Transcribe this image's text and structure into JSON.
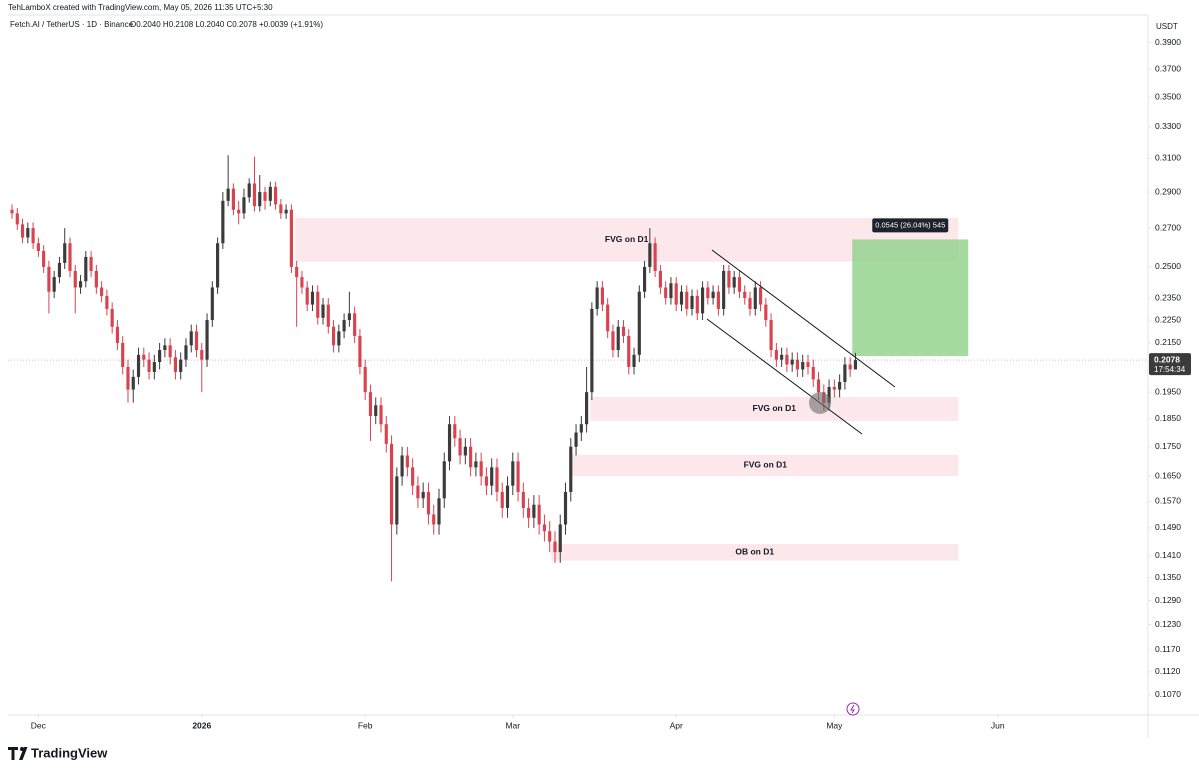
{
  "header": {
    "credit": "TehLamboX created with TradingView.com, May 05, 2026 11:35 UTC+5:30",
    "symbol": "Fetch.AI / TetherUS · 1D · Binance",
    "ohlc": "O0.2040 H0.2108 L0.2040 C0.2078 +0.0039 (+1.91%)"
  },
  "footer": {
    "logo": "TradingView"
  },
  "chart_data": {
    "type": "candlestick",
    "currency": "USDT",
    "log_scale": true,
    "grid": false,
    "up_color": "#3b3b3b",
    "down_color": "#d9434f",
    "xlim": [
      -0.76,
      215.5
    ],
    "xticks": [
      {
        "value": 5,
        "label": "Dec"
      },
      {
        "value": 36,
        "label": "2026"
      },
      {
        "value": 67,
        "label": "Feb"
      },
      {
        "value": 95,
        "label": "Mar"
      },
      {
        "value": 126,
        "label": "Apr"
      },
      {
        "value": 156,
        "label": "May"
      },
      {
        "value": 187,
        "label": "Jun"
      }
    ],
    "ylim": [
      0.1028,
      0.412
    ],
    "yticks": [
      {
        "value": 0.39,
        "label": "0.3900"
      },
      {
        "value": 0.37,
        "label": "0.3700"
      },
      {
        "value": 0.35,
        "label": "0.3500"
      },
      {
        "value": 0.33,
        "label": "0.3300"
      },
      {
        "value": 0.31,
        "label": "0.3100"
      },
      {
        "value": 0.29,
        "label": "0.2900"
      },
      {
        "value": 0.27,
        "label": "0.2700"
      },
      {
        "value": 0.25,
        "label": "0.2500"
      },
      {
        "value": 0.235,
        "label": "0.2350"
      },
      {
        "value": 0.225,
        "label": "0.2250"
      },
      {
        "value": 0.215,
        "label": "0.2150"
      },
      {
        "value": 0.195,
        "label": "0.1950"
      },
      {
        "value": 0.185,
        "label": "0.1850"
      },
      {
        "value": 0.175,
        "label": "0.1750"
      },
      {
        "value": 0.165,
        "label": "0.1650"
      },
      {
        "value": 0.157,
        "label": "0.1570"
      },
      {
        "value": 0.149,
        "label": "0.1490"
      },
      {
        "value": 0.141,
        "label": "0.1410"
      },
      {
        "value": 0.135,
        "label": "0.1350"
      },
      {
        "value": 0.129,
        "label": "0.1290"
      },
      {
        "value": 0.123,
        "label": "0.1230"
      },
      {
        "value": 0.117,
        "label": "0.1170"
      },
      {
        "value": 0.112,
        "label": "0.1120"
      },
      {
        "value": 0.107,
        "label": "0.1070"
      }
    ],
    "open": [
      0.28,
      0.278,
      0.272,
      0.265,
      0.27,
      0.262,
      0.258,
      0.25,
      0.238,
      0.245,
      0.252,
      0.262,
      0.248,
      0.24,
      0.243,
      0.255,
      0.248,
      0.24,
      0.236,
      0.23,
      0.222,
      0.215,
      0.205,
      0.196,
      0.201,
      0.21,
      0.208,
      0.203,
      0.207,
      0.212,
      0.214,
      0.209,
      0.203,
      0.208,
      0.214,
      0.22,
      0.212,
      0.208,
      0.225,
      0.24,
      0.262,
      0.285,
      0.292,
      0.28,
      0.278,
      0.287,
      0.295,
      0.282,
      0.29,
      0.285,
      0.293,
      0.283,
      0.278,
      0.28,
      0.25,
      0.245,
      0.24,
      0.232,
      0.238,
      0.226,
      0.232,
      0.222,
      0.214,
      0.22,
      0.225,
      0.228,
      0.218,
      0.205,
      0.195,
      0.186,
      0.19,
      0.183,
      0.176,
      0.15,
      0.165,
      0.172,
      0.168,
      0.162,
      0.158,
      0.16,
      0.153,
      0.15,
      0.158,
      0.17,
      0.183,
      0.178,
      0.172,
      0.175,
      0.168,
      0.17,
      0.165,
      0.162,
      0.168,
      0.16,
      0.155,
      0.162,
      0.17,
      0.16,
      0.155,
      0.152,
      0.156,
      0.15,
      0.148,
      0.145,
      0.142,
      0.15,
      0.16,
      0.175,
      0.18,
      0.183,
      0.195,
      0.23,
      0.24,
      0.232,
      0.22,
      0.212,
      0.222,
      0.218,
      0.205,
      0.21,
      0.238,
      0.25,
      0.262,
      0.248,
      0.24,
      0.235,
      0.242,
      0.232,
      0.238,
      0.23,
      0.236,
      0.228,
      0.24,
      0.235,
      0.238,
      0.23,
      0.248,
      0.24,
      0.245,
      0.238,
      0.235,
      0.23,
      0.24,
      0.232,
      0.225,
      0.212,
      0.208,
      0.21,
      0.206,
      0.208,
      0.204,
      0.207,
      0.205,
      0.2,
      0.195,
      0.191,
      0.197,
      0.196,
      0.199,
      0.206,
      0.204
    ],
    "high": [
      0.283,
      0.281,
      0.275,
      0.273,
      0.273,
      0.265,
      0.261,
      0.253,
      0.248,
      0.255,
      0.27,
      0.265,
      0.251,
      0.246,
      0.258,
      0.258,
      0.251,
      0.243,
      0.239,
      0.233,
      0.225,
      0.218,
      0.208,
      0.204,
      0.213,
      0.213,
      0.211,
      0.21,
      0.215,
      0.217,
      0.217,
      0.212,
      0.211,
      0.217,
      0.223,
      0.223,
      0.215,
      0.228,
      0.243,
      0.265,
      0.29,
      0.312,
      0.295,
      0.285,
      0.292,
      0.298,
      0.311,
      0.3,
      0.293,
      0.296,
      0.296,
      0.286,
      0.283,
      0.283,
      0.253,
      0.248,
      0.243,
      0.241,
      0.241,
      0.235,
      0.235,
      0.225,
      0.223,
      0.228,
      0.238,
      0.231,
      0.221,
      0.208,
      0.198,
      0.193,
      0.193,
      0.186,
      0.179,
      0.168,
      0.175,
      0.175,
      0.171,
      0.165,
      0.163,
      0.163,
      0.156,
      0.161,
      0.173,
      0.186,
      0.186,
      0.181,
      0.178,
      0.178,
      0.173,
      0.173,
      0.168,
      0.171,
      0.171,
      0.163,
      0.165,
      0.173,
      0.173,
      0.163,
      0.158,
      0.159,
      0.159,
      0.153,
      0.151,
      0.148,
      0.153,
      0.163,
      0.178,
      0.183,
      0.186,
      0.205,
      0.233,
      0.243,
      0.243,
      0.235,
      0.223,
      0.225,
      0.225,
      0.221,
      0.213,
      0.241,
      0.253,
      0.27,
      0.265,
      0.251,
      0.243,
      0.245,
      0.245,
      0.241,
      0.241,
      0.239,
      0.239,
      0.243,
      0.243,
      0.241,
      0.241,
      0.251,
      0.251,
      0.248,
      0.248,
      0.241,
      0.238,
      0.243,
      0.243,
      0.235,
      0.228,
      0.215,
      0.213,
      0.213,
      0.211,
      0.211,
      0.21,
      0.21,
      0.208,
      0.203,
      0.198,
      0.2,
      0.2,
      0.202,
      0.209,
      0.209,
      0.2108
    ],
    "low": [
      0.275,
      0.269,
      0.262,
      0.262,
      0.259,
      0.255,
      0.247,
      0.228,
      0.235,
      0.242,
      0.249,
      0.245,
      0.228,
      0.237,
      0.24,
      0.245,
      0.237,
      0.233,
      0.227,
      0.219,
      0.212,
      0.202,
      0.191,
      0.191,
      0.198,
      0.205,
      0.2,
      0.2,
      0.204,
      0.209,
      0.206,
      0.2,
      0.2,
      0.205,
      0.211,
      0.209,
      0.195,
      0.205,
      0.222,
      0.237,
      0.259,
      0.282,
      0.277,
      0.272,
      0.275,
      0.284,
      0.279,
      0.279,
      0.28,
      0.282,
      0.28,
      0.275,
      0.275,
      0.247,
      0.222,
      0.237,
      0.229,
      0.229,
      0.223,
      0.223,
      0.219,
      0.211,
      0.211,
      0.217,
      0.222,
      0.215,
      0.202,
      0.192,
      0.177,
      0.183,
      0.18,
      0.173,
      0.134,
      0.147,
      0.162,
      0.165,
      0.159,
      0.155,
      0.155,
      0.15,
      0.147,
      0.147,
      0.155,
      0.167,
      0.175,
      0.169,
      0.169,
      0.165,
      0.165,
      0.162,
      0.159,
      0.159,
      0.157,
      0.152,
      0.152,
      0.159,
      0.157,
      0.152,
      0.149,
      0.149,
      0.147,
      0.145,
      0.142,
      0.139,
      0.139,
      0.147,
      0.157,
      0.172,
      0.177,
      0.18,
      0.192,
      0.227,
      0.229,
      0.217,
      0.209,
      0.209,
      0.215,
      0.202,
      0.202,
      0.207,
      0.235,
      0.247,
      0.245,
      0.237,
      0.232,
      0.232,
      0.229,
      0.229,
      0.227,
      0.227,
      0.225,
      0.225,
      0.232,
      0.232,
      0.227,
      0.227,
      0.237,
      0.237,
      0.235,
      0.232,
      0.227,
      0.227,
      0.229,
      0.222,
      0.209,
      0.205,
      0.205,
      0.203,
      0.203,
      0.201,
      0.201,
      0.202,
      0.197,
      0.192,
      0.188,
      0.188,
      0.193,
      0.193,
      0.196,
      0.201,
      0.204
    ],
    "close": [
      0.278,
      0.272,
      0.265,
      0.27,
      0.262,
      0.258,
      0.25,
      0.238,
      0.245,
      0.252,
      0.262,
      0.248,
      0.24,
      0.243,
      0.255,
      0.248,
      0.24,
      0.236,
      0.23,
      0.222,
      0.215,
      0.205,
      0.196,
      0.201,
      0.21,
      0.208,
      0.203,
      0.207,
      0.212,
      0.214,
      0.209,
      0.203,
      0.208,
      0.214,
      0.22,
      0.212,
      0.208,
      0.225,
      0.24,
      0.262,
      0.285,
      0.292,
      0.28,
      0.278,
      0.287,
      0.295,
      0.282,
      0.29,
      0.285,
      0.293,
      0.283,
      0.278,
      0.28,
      0.25,
      0.245,
      0.24,
      0.232,
      0.238,
      0.226,
      0.232,
      0.222,
      0.214,
      0.22,
      0.225,
      0.228,
      0.218,
      0.205,
      0.195,
      0.186,
      0.19,
      0.183,
      0.176,
      0.15,
      0.165,
      0.172,
      0.168,
      0.162,
      0.158,
      0.16,
      0.153,
      0.15,
      0.158,
      0.17,
      0.183,
      0.178,
      0.172,
      0.175,
      0.168,
      0.17,
      0.165,
      0.162,
      0.168,
      0.16,
      0.155,
      0.162,
      0.17,
      0.16,
      0.155,
      0.152,
      0.156,
      0.15,
      0.148,
      0.145,
      0.142,
      0.15,
      0.16,
      0.175,
      0.18,
      0.183,
      0.195,
      0.23,
      0.24,
      0.232,
      0.22,
      0.212,
      0.222,
      0.218,
      0.205,
      0.21,
      0.238,
      0.25,
      0.262,
      0.248,
      0.24,
      0.235,
      0.242,
      0.232,
      0.238,
      0.23,
      0.236,
      0.228,
      0.24,
      0.235,
      0.238,
      0.23,
      0.248,
      0.24,
      0.245,
      0.238,
      0.235,
      0.23,
      0.24,
      0.232,
      0.225,
      0.212,
      0.208,
      0.21,
      0.206,
      0.208,
      0.204,
      0.207,
      0.205,
      0.2,
      0.195,
      0.191,
      0.197,
      0.196,
      0.199,
      0.206,
      0.204,
      0.2078
    ],
    "zones": [
      {
        "label": "FVG on D1",
        "top": 0.2756,
        "bottom": 0.2526,
        "start": 53.7,
        "end": 179.5
      },
      {
        "label": "FVG on D1",
        "top": 0.1932,
        "bottom": 0.1842,
        "start": 109.7,
        "end": 179.5
      },
      {
        "label": "FVG on D1",
        "top": 0.1722,
        "bottom": 0.1651,
        "start": 106.3,
        "end": 179.5
      },
      {
        "label": "OB on D1",
        "top": 0.1443,
        "bottom": 0.1396,
        "start": 102.3,
        "end": 179.5
      }
    ],
    "target": {
      "label": "0.0545 (26.04%) 545",
      "top": 0.264,
      "bottom": 0.2095,
      "start": 159.4,
      "end": 181.4
    },
    "last_price": {
      "value": 0.2078,
      "label": "0.2078"
    },
    "countdown": "17:54:34"
  }
}
